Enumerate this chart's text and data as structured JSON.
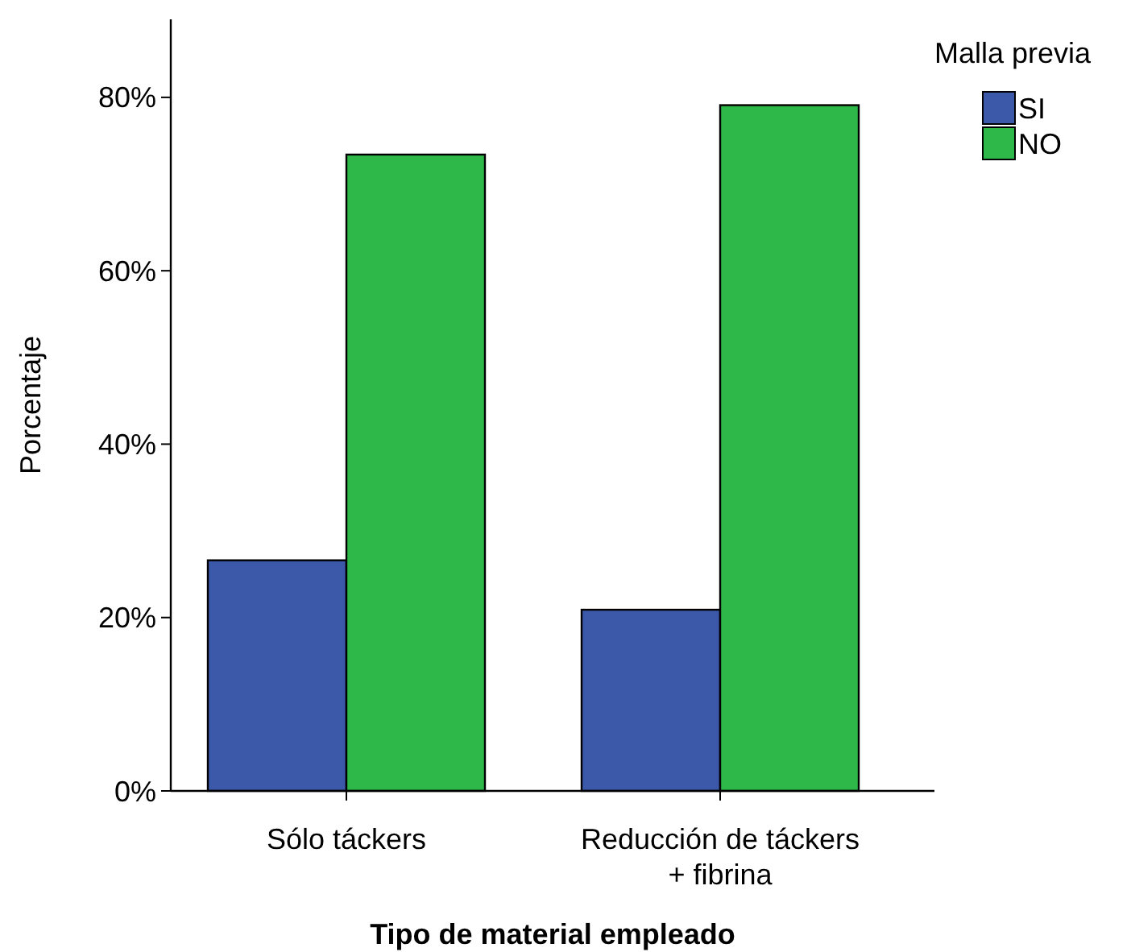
{
  "chart_data": {
    "type": "bar",
    "xlabel": "Tipo de material empleado",
    "ylabel": "Porcentaje",
    "legend_title": "Malla previa",
    "categories": [
      "Sólo táckers",
      "Reducción de táckers\n+ fibrina"
    ],
    "series": [
      {
        "name": "SI",
        "color": "#3c58a8",
        "values": [
          26.6,
          20.9
        ]
      },
      {
        "name": "NO",
        "color": "#2fb84a",
        "values": [
          73.4,
          79.1
        ]
      }
    ],
    "ylim": [
      0,
      89
    ],
    "yticks": [
      {
        "value": 0,
        "label": "0%"
      },
      {
        "value": 20,
        "label": "20%"
      },
      {
        "value": 40,
        "label": "40%"
      },
      {
        "value": 60,
        "label": "60%"
      },
      {
        "value": 80,
        "label": "80%"
      }
    ],
    "grid": false,
    "legend": "top right"
  }
}
